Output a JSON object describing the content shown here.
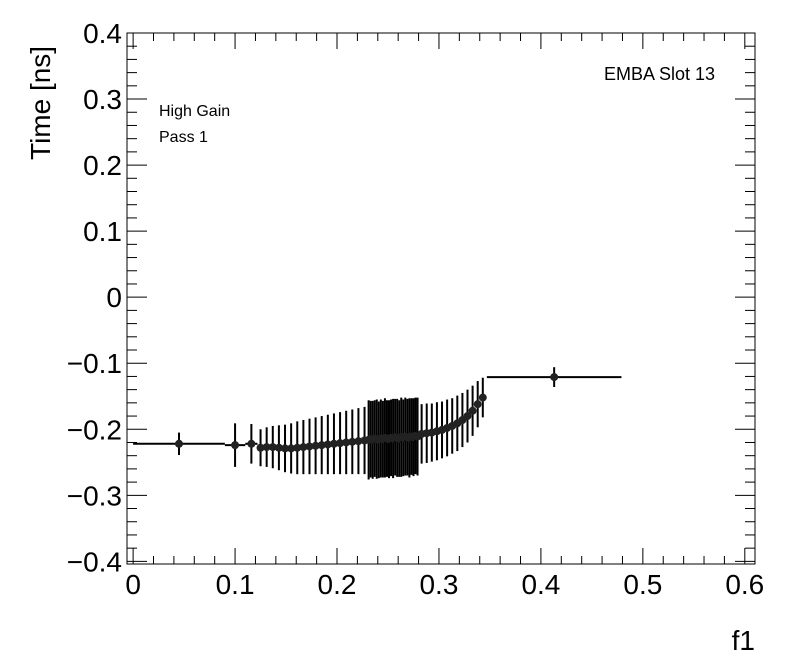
{
  "chart_data": {
    "type": "scatter",
    "title": "",
    "xlabel": "f1",
    "ylabel": "Time [ns]",
    "xlim": [
      -0.006,
      0.61
    ],
    "ylim": [
      -0.404,
      0.4
    ],
    "grid": false,
    "x_ticks": [
      "0",
      "0.1",
      "0.2",
      "0.3",
      "0.4",
      "0.5",
      "0.6"
    ],
    "y_ticks": [
      "−0.4",
      "−0.3",
      "−0.2",
      "−0.1",
      "0",
      "0.1",
      "0.2",
      "0.3",
      "0.4"
    ],
    "annotations": {
      "label": "EMBA Slot 13",
      "gain": "High Gain",
      "pass": "Pass 1"
    },
    "marker_color": "#000000",
    "points_format": [
      "x",
      "y",
      "x_error",
      "y_error"
    ],
    "points": [
      [
        0.045,
        -0.222,
        0.045,
        0.017
      ],
      [
        0.1,
        -0.224,
        0.01,
        0.033
      ],
      [
        0.116,
        -0.222,
        0.006,
        0.03
      ],
      [
        0.125,
        -0.228,
        0.003,
        0.028
      ],
      [
        0.131,
        -0.227,
        0.003,
        0.03
      ],
      [
        0.137,
        -0.227,
        0.003,
        0.032
      ],
      [
        0.143,
        -0.228,
        0.003,
        0.034
      ],
      [
        0.149,
        -0.229,
        0.003,
        0.036
      ],
      [
        0.155,
        -0.229,
        0.003,
        0.038
      ],
      [
        0.161,
        -0.228,
        0.003,
        0.04
      ],
      [
        0.167,
        -0.227,
        0.003,
        0.041
      ],
      [
        0.173,
        -0.226,
        0.003,
        0.042
      ],
      [
        0.179,
        -0.225,
        0.003,
        0.043
      ],
      [
        0.185,
        -0.224,
        0.003,
        0.044
      ],
      [
        0.191,
        -0.223,
        0.003,
        0.045
      ],
      [
        0.197,
        -0.222,
        0.003,
        0.046
      ],
      [
        0.203,
        -0.221,
        0.003,
        0.047
      ],
      [
        0.209,
        -0.22,
        0.003,
        0.048
      ],
      [
        0.215,
        -0.219,
        0.003,
        0.049
      ],
      [
        0.221,
        -0.218,
        0.003,
        0.05
      ],
      [
        0.227,
        -0.217,
        0.003,
        0.051
      ],
      [
        0.231,
        -0.216,
        0.001,
        0.06
      ],
      [
        0.233,
        -0.215,
        0.001,
        0.058
      ],
      [
        0.235,
        -0.216,
        0.001,
        0.059
      ],
      [
        0.237,
        -0.214,
        0.001,
        0.058
      ],
      [
        0.239,
        -0.215,
        0.001,
        0.06
      ],
      [
        0.241,
        -0.216,
        0.001,
        0.058
      ],
      [
        0.243,
        -0.214,
        0.001,
        0.059
      ],
      [
        0.245,
        -0.215,
        0.001,
        0.058
      ],
      [
        0.247,
        -0.213,
        0.001,
        0.06
      ],
      [
        0.249,
        -0.214,
        0.001,
        0.058
      ],
      [
        0.251,
        -0.215,
        0.001,
        0.059
      ],
      [
        0.253,
        -0.213,
        0.001,
        0.058
      ],
      [
        0.255,
        -0.214,
        0.001,
        0.06
      ],
      [
        0.257,
        -0.212,
        0.001,
        0.058
      ],
      [
        0.259,
        -0.213,
        0.001,
        0.059
      ],
      [
        0.261,
        -0.214,
        0.001,
        0.058
      ],
      [
        0.263,
        -0.212,
        0.001,
        0.06
      ],
      [
        0.265,
        -0.213,
        0.001,
        0.058
      ],
      [
        0.267,
        -0.211,
        0.001,
        0.059
      ],
      [
        0.269,
        -0.212,
        0.001,
        0.058
      ],
      [
        0.271,
        -0.213,
        0.001,
        0.06
      ],
      [
        0.273,
        -0.211,
        0.001,
        0.058
      ],
      [
        0.275,
        -0.212,
        0.001,
        0.059
      ],
      [
        0.277,
        -0.21,
        0.001,
        0.058
      ],
      [
        0.279,
        -0.211,
        0.001,
        0.059
      ],
      [
        0.283,
        -0.207,
        0.002,
        0.045
      ],
      [
        0.288,
        -0.206,
        0.002,
        0.045
      ],
      [
        0.293,
        -0.205,
        0.002,
        0.044
      ],
      [
        0.298,
        -0.203,
        0.002,
        0.044
      ],
      [
        0.303,
        -0.201,
        0.002,
        0.043
      ],
      [
        0.308,
        -0.198,
        0.002,
        0.043
      ],
      [
        0.313,
        -0.195,
        0.002,
        0.042
      ],
      [
        0.318,
        -0.191,
        0.002,
        0.042
      ],
      [
        0.323,
        -0.186,
        0.002,
        0.041
      ],
      [
        0.328,
        -0.18,
        0.002,
        0.04
      ],
      [
        0.333,
        -0.172,
        0.002,
        0.038
      ],
      [
        0.338,
        -0.162,
        0.002,
        0.035
      ],
      [
        0.343,
        -0.152,
        0.002,
        0.03
      ],
      [
        0.413,
        -0.121,
        0.066,
        0.015
      ]
    ]
  }
}
